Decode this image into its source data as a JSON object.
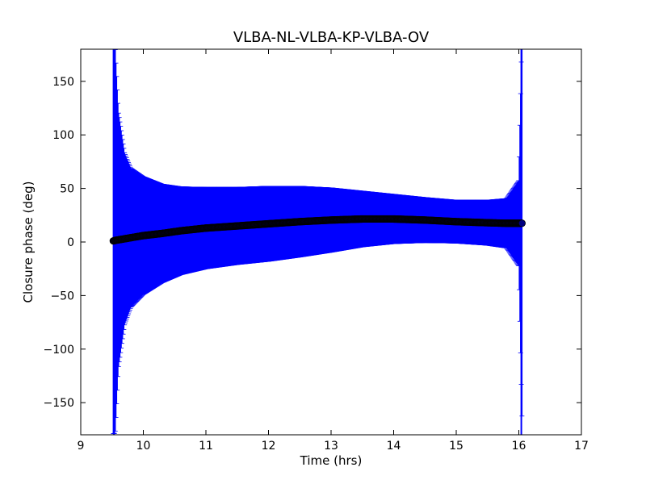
{
  "chart_data": {
    "type": "scatter",
    "title": "VLBA-NL-VLBA-KP-VLBA-OV",
    "xlabel": "Time (hrs)",
    "ylabel": "Closure phase (deg)",
    "xlim": [
      9,
      17
    ],
    "ylim": [
      -180,
      180
    ],
    "xticks": [
      9,
      10,
      11,
      12,
      13,
      14,
      15,
      16,
      17
    ],
    "xtick_labels": [
      "9",
      "10",
      "11",
      "12",
      "13",
      "14",
      "15",
      "16",
      "17"
    ],
    "yticks": [
      -150,
      -100,
      -50,
      0,
      50,
      100,
      150
    ],
    "ytick_labels": [
      "−150",
      "−100",
      "−50",
      "0",
      "50",
      "100",
      "150"
    ],
    "grid": false,
    "series": [
      {
        "kind": "points_with_error_bars",
        "marker_color": "#000080",
        "errorbar_color": "#0000ff",
        "time_range": [
          9.52,
          16.05
        ],
        "x": [
          9.52,
          9.55,
          9.6,
          9.7,
          9.8,
          10.0,
          10.3,
          10.6,
          11.0,
          11.5,
          12.0,
          12.5,
          13.0,
          13.5,
          14.0,
          14.5,
          15.0,
          15.5,
          15.8,
          16.0,
          16.05
        ],
        "y": [
          1,
          1.5,
          2,
          3,
          4,
          6,
          8,
          10.5,
          13,
          15,
          17,
          19,
          20.5,
          21.5,
          21.5,
          20.5,
          19,
          18,
          17.5,
          17.5,
          17.5
        ],
        "yerr": [
          180,
          180,
          120,
          80,
          65,
          55,
          46,
          41,
          38,
          36,
          35,
          33,
          30,
          26,
          23,
          21,
          20,
          21,
          23,
          40,
          180
        ]
      }
    ]
  }
}
